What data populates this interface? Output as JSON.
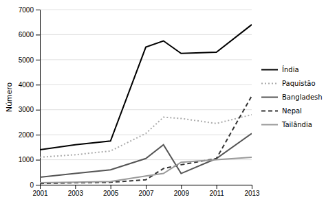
{
  "chart_data": {
    "type": "line",
    "x": [
      2001,
      2003,
      2005,
      2007,
      2008,
      2009,
      2011,
      2013
    ],
    "series": [
      {
        "name": "Índia",
        "color": "#000000",
        "line_style": "solid",
        "values": [
          1400,
          1600,
          1750,
          5500,
          5750,
          5250,
          5300,
          6400
        ]
      },
      {
        "name": "Paquistão",
        "color": "#aaaaaa",
        "line_style": "dotted",
        "values": [
          1100,
          1200,
          1350,
          2050,
          2700,
          2650,
          2450,
          2800
        ]
      },
      {
        "name": "Bangladesh",
        "color": "#555555",
        "line_style": "solid",
        "values": [
          300,
          450,
          600,
          1050,
          1600,
          450,
          1050,
          2050
        ]
      },
      {
        "name": "Nepal",
        "color": "#333333",
        "line_style": "dashed",
        "values": [
          50,
          80,
          100,
          200,
          650,
          800,
          1050,
          3550
        ]
      },
      {
        "name": "Tailândia",
        "color": "#999999",
        "line_style": "solid",
        "values": [
          80,
          100,
          130,
          350,
          450,
          900,
          1000,
          1100
        ]
      }
    ],
    "ylabel": "Número",
    "xlim": [
      2001,
      2013
    ],
    "xticks": [
      2001,
      2003,
      2005,
      2007,
      2009,
      2011,
      2013
    ],
    "ylim": [
      0,
      7000
    ],
    "yticks": [
      0,
      1000,
      2000,
      3000,
      4000,
      5000,
      6000,
      7000
    ],
    "grid": true,
    "legend": "right"
  }
}
